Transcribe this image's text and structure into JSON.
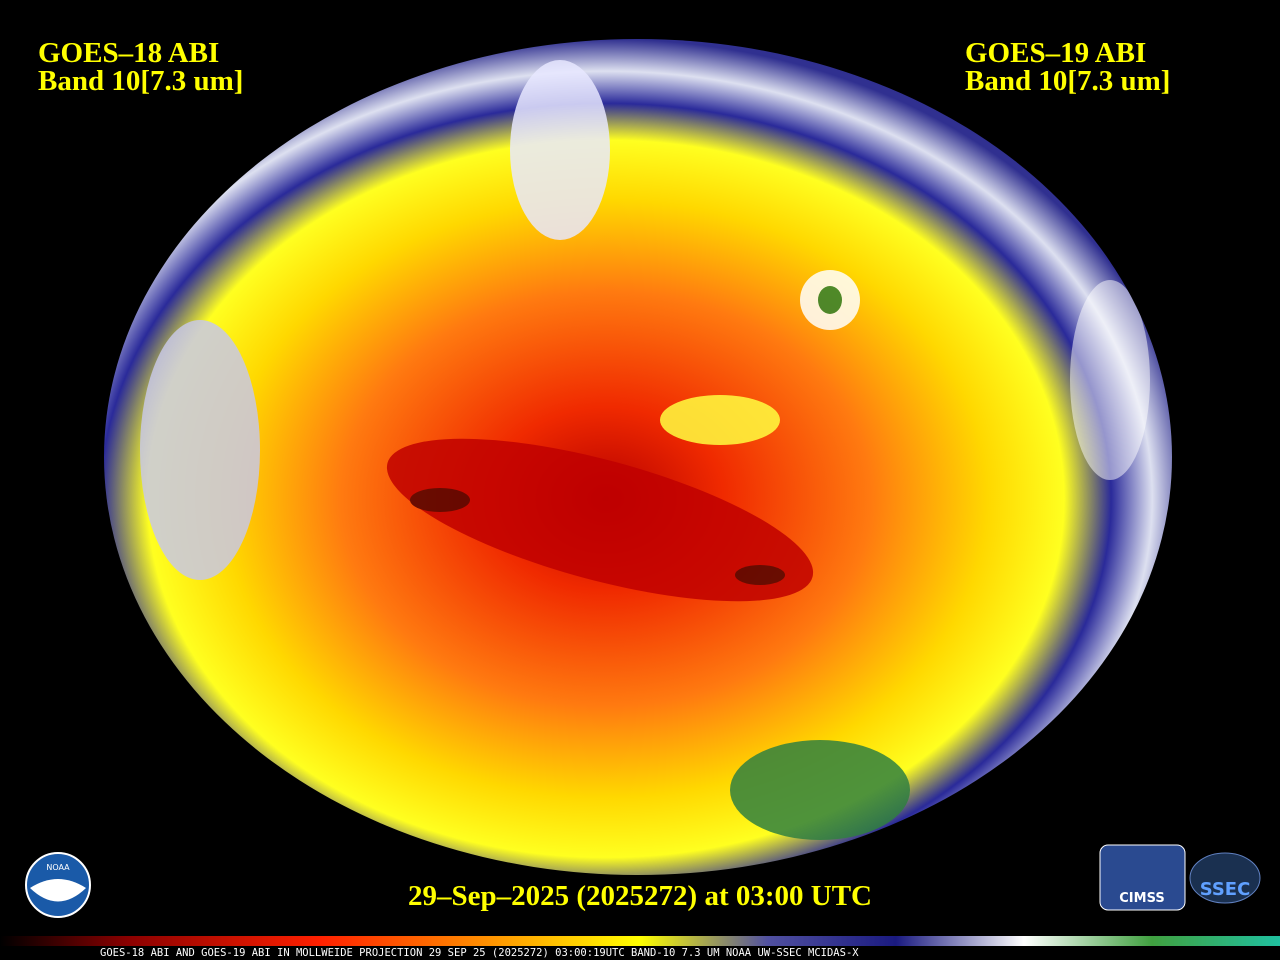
{
  "header": {
    "left": {
      "satellite": "GOES–18 ABI",
      "band": "Band 10[7.3 um]"
    },
    "right": {
      "satellite": "GOES–19 ABI",
      "band": "Band 10[7.3 um]"
    }
  },
  "timestamp": "29–Sep–2025 (2025272) at 03:00 UTC",
  "footer": "GOES-18 ABI AND GOES-19 ABI IN MOLLWEIDE PROJECTION 29 SEP 25 (2025272) 03:00:19UTC BAND-10 7.3 UM NOAA UW-SSEC MCIDAS-X",
  "logos": {
    "noaa": "NOAA",
    "cimss": "CIMSS",
    "ssec": "SSEC"
  }
}
